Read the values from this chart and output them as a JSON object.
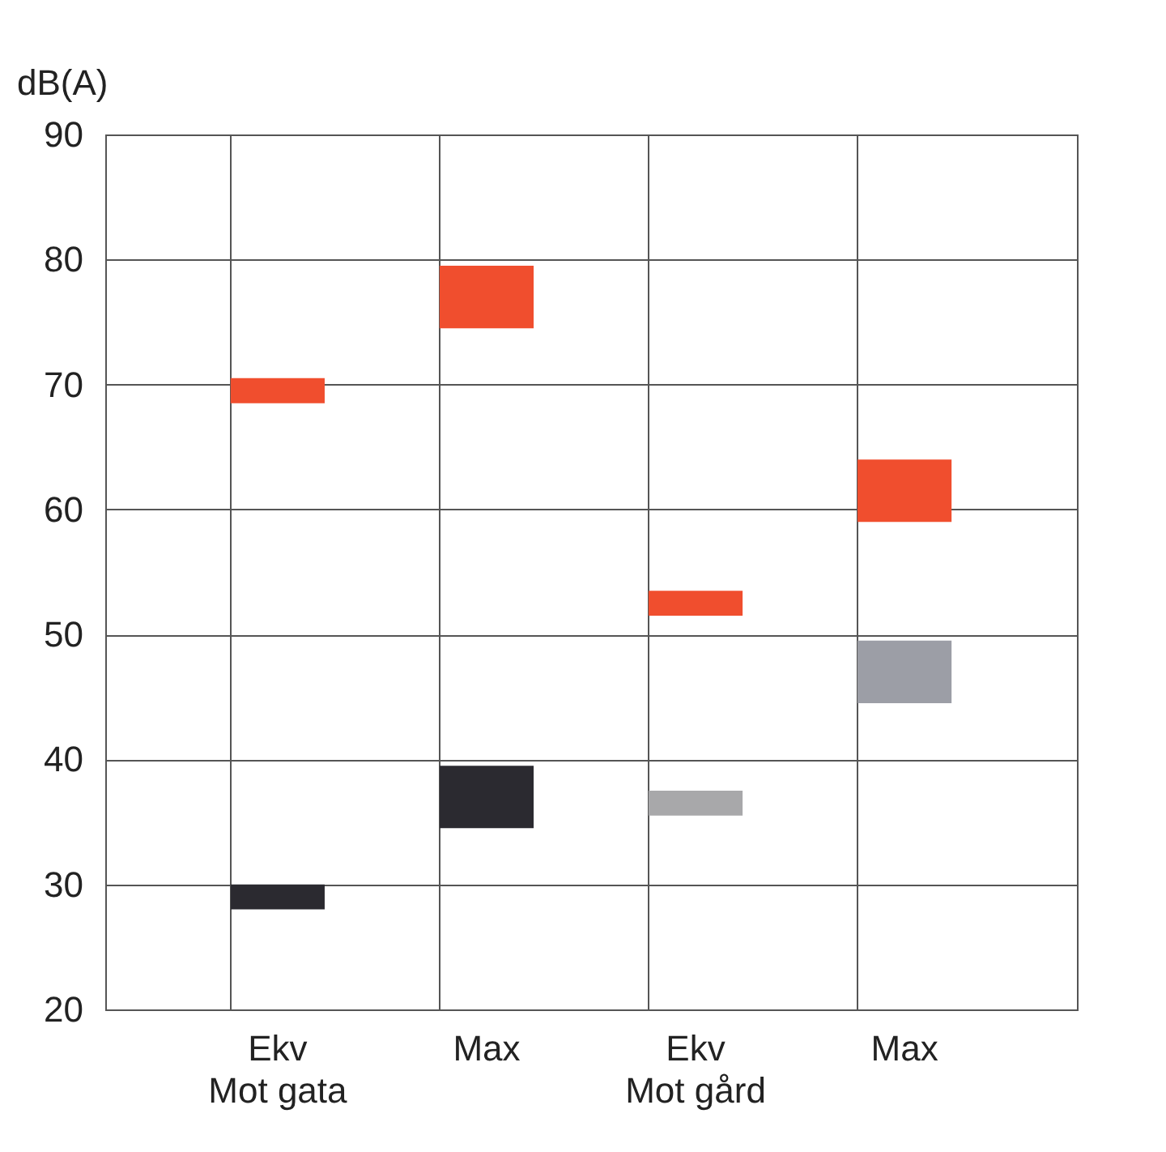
{
  "chart_data": {
    "type": "bar",
    "ylabel": "dB(A)",
    "categories": [
      "Ekv",
      "Max",
      "Ekv",
      "Max"
    ],
    "annotations": [
      "Mot gata",
      "Mot gård"
    ],
    "series": [
      {
        "color": "#f04e2e",
        "base": [
          68.5,
          74.5,
          51.5,
          59
        ],
        "values": [
          2,
          5,
          2,
          5
        ]
      },
      {
        "colors": [
          "#2b2a30",
          "#2b2a30",
          "#a8a8aa",
          "#9c9ea6"
        ],
        "base": [
          28,
          34.5,
          35.5,
          44.5
        ],
        "values": [
          2,
          5,
          2,
          5
        ]
      }
    ],
    "ylim": [
      20,
      90
    ],
    "yticks": [
      20,
      30,
      40,
      50,
      60,
      70,
      80,
      90
    ],
    "grid": true
  }
}
